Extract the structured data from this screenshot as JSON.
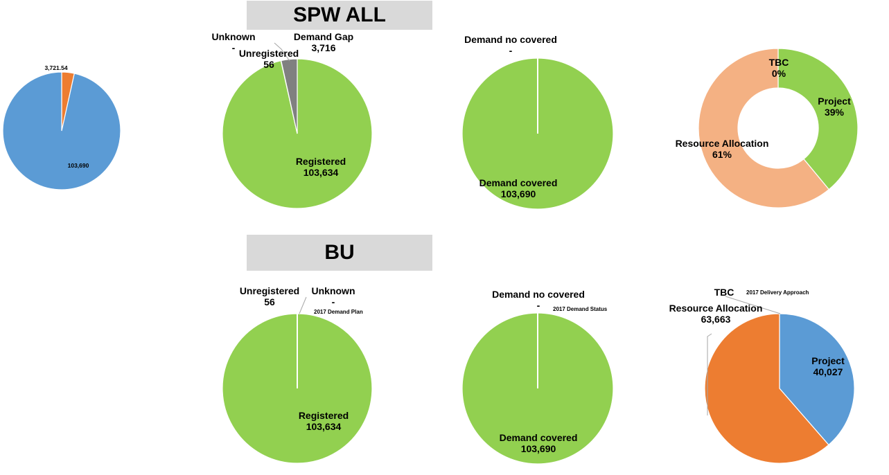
{
  "headers": {
    "spw_all": "SPW ALL",
    "bu": "BU"
  },
  "colors": {
    "green": "#92d050",
    "grey": "#808080",
    "blue": "#5b9bd5",
    "orange": "#ed7d31",
    "salmon": "#f4b183",
    "white": "#ffffff"
  },
  "chart_data": [
    {
      "id": "small_pie",
      "type": "pie",
      "title": "",
      "slices": [
        {
          "label": "",
          "value": 103690,
          "value_label": "103,690",
          "color": "#5b9bd5"
        },
        {
          "label": "",
          "value": 3721.54,
          "value_label": "3,721.54",
          "color": "#ed7d31"
        }
      ]
    },
    {
      "id": "spw_demand_plan",
      "type": "pie",
      "title": "",
      "slices": [
        {
          "label": "Registered",
          "value": 103634,
          "value_label": "103,634",
          "color": "#92d050"
        },
        {
          "label": "Unknown",
          "value": 0,
          "value_label": "-",
          "color": "#92d050"
        },
        {
          "label": "Unregistered",
          "value": 56,
          "value_label": "56",
          "color": "#92d050"
        },
        {
          "label": "Demand Gap",
          "value": 3716,
          "value_label": "3,716",
          "color": "#808080"
        }
      ]
    },
    {
      "id": "spw_demand_status",
      "type": "pie",
      "title": "",
      "slices": [
        {
          "label": "Demand covered",
          "value": 103690,
          "value_label": "103,690",
          "color": "#92d050"
        },
        {
          "label": "Demand no covered",
          "value": 0,
          "value_label": "-",
          "color": "#92d050"
        }
      ]
    },
    {
      "id": "spw_delivery_approach",
      "type": "donut",
      "title": "",
      "slices": [
        {
          "label": "Project",
          "value": 39,
          "value_label": "39%",
          "color": "#92d050"
        },
        {
          "label": "Resource Allocation",
          "value": 61,
          "value_label": "61%",
          "color": "#f4b183"
        },
        {
          "label": "TBC",
          "value": 0,
          "value_label": "0%",
          "color": "#92d050"
        }
      ]
    },
    {
      "id": "bu_demand_plan",
      "type": "pie",
      "title": "2017 Demand Plan",
      "slices": [
        {
          "label": "Registered",
          "value": 103634,
          "value_label": "103,634",
          "color": "#92d050"
        },
        {
          "label": "Unregistered",
          "value": 56,
          "value_label": "56",
          "color": "#92d050"
        },
        {
          "label": "Unknown",
          "value": 0,
          "value_label": "-",
          "color": "#92d050"
        }
      ]
    },
    {
      "id": "bu_demand_status",
      "type": "pie",
      "title": "2017 Demand Status",
      "slices": [
        {
          "label": "Demand covered",
          "value": 103690,
          "value_label": "103,690",
          "color": "#92d050"
        },
        {
          "label": "Demand no covered",
          "value": 0,
          "value_label": "-",
          "color": "#92d050"
        }
      ]
    },
    {
      "id": "bu_delivery_approach",
      "type": "pie",
      "title": "2017 Delivery Approach",
      "slices": [
        {
          "label": "Project",
          "value": 40027,
          "value_label": "40,027",
          "color": "#5b9bd5"
        },
        {
          "label": "Resource Allocation",
          "value": 63663,
          "value_label": "63,663",
          "color": "#ed7d31"
        },
        {
          "label": "TBC",
          "value": 0,
          "value_label": "",
          "color": "#5b9bd5"
        }
      ]
    }
  ]
}
